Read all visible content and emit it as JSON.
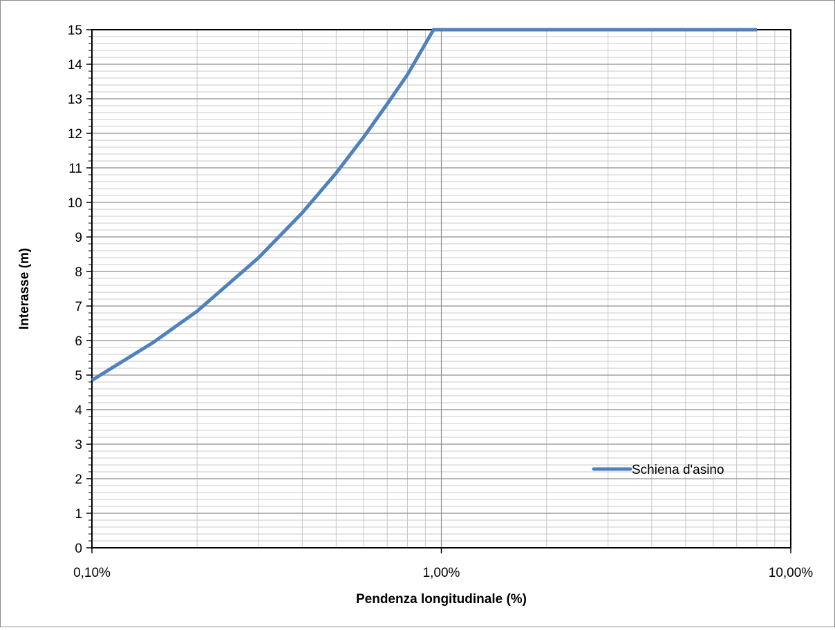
{
  "chart_data": {
    "type": "line",
    "title": "",
    "xlabel": "Pendenza longitudinale (%)",
    "ylabel": "Interasse (m)",
    "x_scale": "log",
    "xlim": [
      0.001,
      0.1
    ],
    "ylim": [
      0,
      15
    ],
    "grid": true,
    "legend_position": "lower-right",
    "x_tick_labels": [
      "0,10%",
      "1,00%",
      "10,00%"
    ],
    "x_tick_values": [
      0.001,
      0.01,
      0.1
    ],
    "y_tick_labels": [
      "0",
      "1",
      "2",
      "3",
      "4",
      "5",
      "6",
      "7",
      "8",
      "9",
      "10",
      "11",
      "12",
      "13",
      "14",
      "15"
    ],
    "y_tick_values": [
      0,
      1,
      2,
      3,
      4,
      5,
      6,
      7,
      8,
      9,
      10,
      11,
      12,
      13,
      14,
      15
    ],
    "series": [
      {
        "name": "Schiena d'asino",
        "color": "#4f81bd",
        "x": [
          0.001,
          0.0015,
          0.002,
          0.003,
          0.004,
          0.005,
          0.006,
          0.007,
          0.008,
          0.0095,
          0.01,
          0.02,
          0.05,
          0.08
        ],
        "y": [
          4.85,
          5.95,
          6.85,
          8.4,
          9.7,
          10.85,
          11.9,
          12.85,
          13.7,
          15,
          15,
          15,
          15,
          15
        ]
      }
    ]
  }
}
